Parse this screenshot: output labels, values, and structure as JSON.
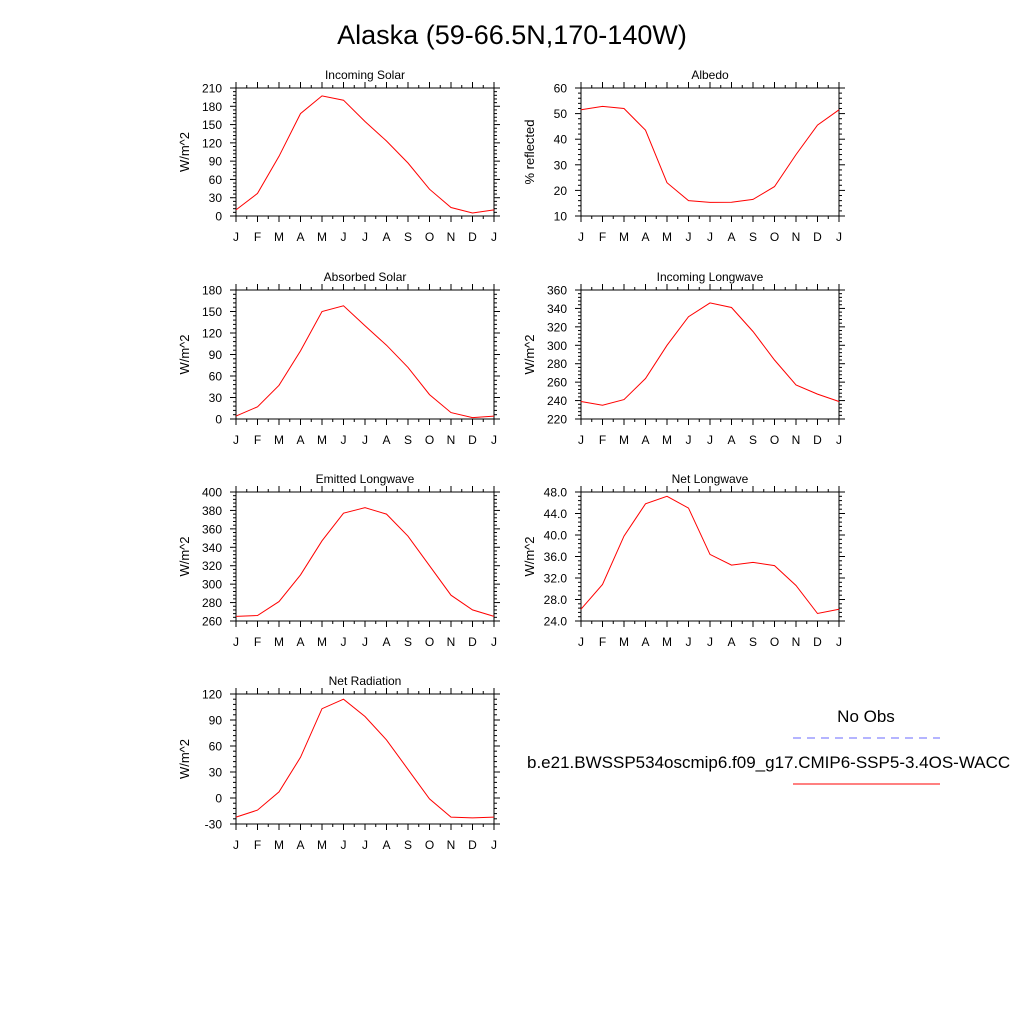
{
  "title": "Alaska (59-66.5N,170-140W)",
  "month_labels": [
    "J",
    "F",
    "M",
    "A",
    "M",
    "J",
    "J",
    "A",
    "S",
    "O",
    "N",
    "D",
    "J"
  ],
  "legend": {
    "obs_label": "No Obs",
    "obs_color": "#6a6aff",
    "model_label": "b.e21.BWSSP534oscmip6.f09_g17.CMIP6-SSP5-3.4OS-WACC",
    "model_color": "#ff0000"
  },
  "chart_data": [
    {
      "type": "line",
      "title": "Incoming Solar",
      "ylabel": "W/m^2",
      "ylim": [
        0,
        210
      ],
      "yticks": [
        "0",
        "30",
        "60",
        "90",
        "120",
        "150",
        "180",
        "210"
      ],
      "values": [
        10,
        37,
        98,
        168,
        197,
        190,
        155,
        123,
        87,
        44,
        14,
        5,
        10
      ]
    },
    {
      "type": "line",
      "title": "Albedo",
      "ylabel": "% reflected",
      "ylim": [
        10,
        60
      ],
      "yticks": [
        "10",
        "20",
        "30",
        "40",
        "50",
        "60"
      ],
      "values": [
        51.5,
        52.8,
        52,
        43.5,
        23,
        16,
        15.3,
        15.4,
        16.5,
        21.5,
        34,
        45.5,
        51.5
      ]
    },
    {
      "type": "line",
      "title": "Absorbed Solar",
      "ylabel": "W/m^2",
      "ylim": [
        0,
        180
      ],
      "yticks": [
        "0",
        "30",
        "60",
        "90",
        "120",
        "150",
        "180"
      ],
      "values": [
        4,
        17,
        47,
        95,
        150,
        158,
        130,
        103,
        72,
        34,
        9,
        2,
        4
      ]
    },
    {
      "type": "line",
      "title": "Incoming Longwave",
      "ylabel": "W/m^2",
      "ylim": [
        220,
        360
      ],
      "yticks": [
        "220",
        "240",
        "260",
        "280",
        "300",
        "320",
        "340",
        "360"
      ],
      "values": [
        239,
        235,
        241,
        264,
        300,
        331,
        346,
        341,
        315,
        284,
        257,
        247,
        239
      ]
    },
    {
      "type": "line",
      "title": "Emitted Longwave",
      "ylabel": "W/m^2",
      "ylim": [
        260,
        400
      ],
      "yticks": [
        "260",
        "280",
        "300",
        "320",
        "340",
        "360",
        "380",
        "400"
      ],
      "values": [
        265,
        266,
        281,
        310,
        347,
        377,
        383,
        376,
        352,
        320,
        288,
        272,
        265
      ]
    },
    {
      "type": "line",
      "title": "Net Longwave",
      "ylabel": "W/m^2",
      "ylim": [
        24,
        48
      ],
      "yticks": [
        "24.0",
        "28.0",
        "32.0",
        "36.0",
        "40.0",
        "44.0",
        "48.0"
      ],
      "values": [
        26.2,
        30.8,
        39.8,
        45.8,
        47.2,
        45,
        36.4,
        34.4,
        34.9,
        34.3,
        30.6,
        25.4,
        26.2
      ]
    },
    {
      "type": "line",
      "title": "Net Radiation",
      "ylabel": "W/m^2",
      "ylim": [
        -30,
        120
      ],
      "yticks": [
        "-30",
        "0",
        "30",
        "60",
        "90",
        "120"
      ],
      "values": [
        -22,
        -14,
        7,
        47,
        103,
        114,
        94,
        67,
        33,
        -1,
        -22,
        -23,
        -22
      ]
    }
  ]
}
